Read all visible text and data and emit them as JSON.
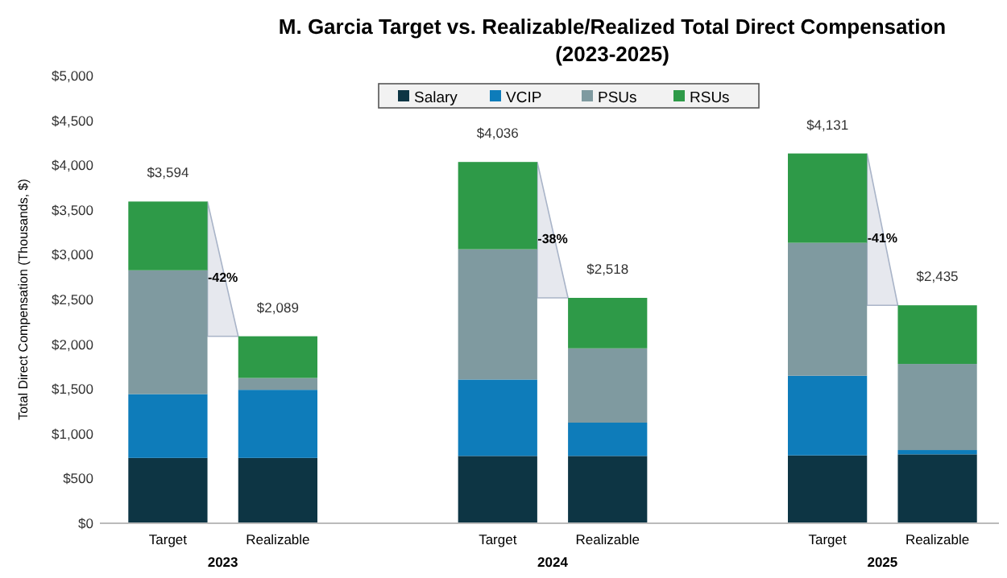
{
  "chart_data": {
    "type": "bar",
    "stacked": true,
    "title": "M. Garcia Target vs. Realizable/Realized Total Direct Compensation",
    "subtitle": "(2023-2025)",
    "ylabel": "Total Direct Compensation (Thousands, $)",
    "categories": [
      "Target",
      "Realizable",
      null,
      "Target",
      "Realizable",
      null,
      "Target",
      "Realizable"
    ],
    "series": [
      {
        "name": "Salary",
        "color": "#0d3544",
        "values": [
          730,
          730,
          null,
          752,
          752,
          null,
          758,
          770
        ]
      },
      {
        "name": "VCIP",
        "color": "#0e7cba",
        "values": [
          713,
          761,
          null,
          854,
          372,
          null,
          890,
          48
        ]
      },
      {
        "name": "PSUs",
        "color": "#7f9aa0",
        "values": [
          1383,
          132,
          null,
          1455,
          830,
          null,
          1485,
          962
        ]
      },
      {
        "name": "RSUs",
        "color": "#2e9a48",
        "values": [
          768,
          466,
          null,
          975,
          564,
          null,
          998,
          655
        ]
      }
    ],
    "totals": [
      "$3,594",
      "$2,089",
      null,
      "$4,036",
      "$2,518",
      null,
      "$4,131",
      "$2,435"
    ],
    "annotations": [
      "2023",
      "2024",
      "2025",
      "-42%",
      "-38%",
      "-41%"
    ],
    "ylim": [
      0,
      5000
    ],
    "yticks": [
      {
        "value": 0,
        "label": "$0"
      },
      {
        "value": 500,
        "label": "$500"
      },
      {
        "value": 1000,
        "label": "$1,000"
      },
      {
        "value": 1500,
        "label": "$1,500"
      },
      {
        "value": 2000,
        "label": "$2,000"
      },
      {
        "value": 2500,
        "label": "$2,500"
      },
      {
        "value": 3000,
        "label": "$3,000"
      },
      {
        "value": 3500,
        "label": "$3,500"
      },
      {
        "value": 4000,
        "label": "$4,000"
      },
      {
        "value": 4500,
        "label": "$4,500"
      },
      {
        "value": 5000,
        "label": "$5,000"
      }
    ],
    "grid": false,
    "legend": "top"
  }
}
